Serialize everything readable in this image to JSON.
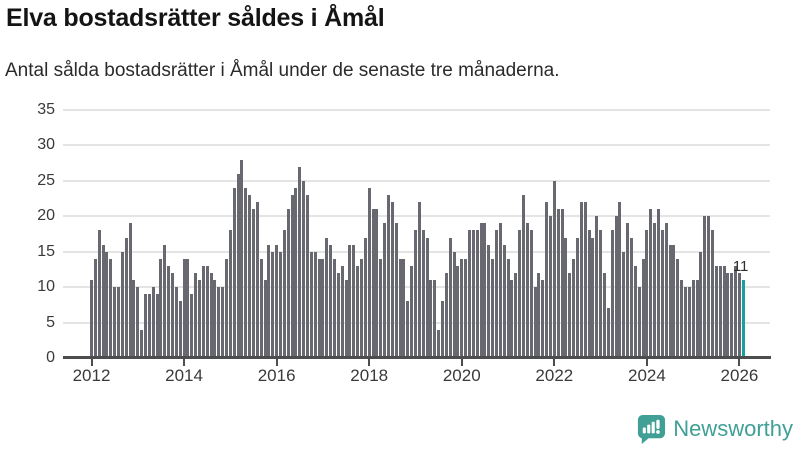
{
  "header": {
    "title": "Elva bostadsrätter såldes i Åmål",
    "subtitle": "Antal sålda bostadsrätter i Åmål under de senaste tre månaderna."
  },
  "chart_data": {
    "type": "bar",
    "title": "Elva bostadsrätter såldes i Åmål",
    "subtitle": "Antal sålda bostadsrätter i Åmål under de senaste tre månaderna.",
    "frequency": "monthly",
    "x_start": "2012-01",
    "x_end": "2026-02",
    "xlabel": "",
    "ylabel": "",
    "ylim": [
      0,
      35
    ],
    "y_ticks": [
      0,
      5,
      10,
      15,
      20,
      25,
      30,
      35
    ],
    "x_tick_labels": [
      "2012",
      "2014",
      "2016",
      "2018",
      "2020",
      "2022",
      "2024",
      "2026"
    ],
    "grid": "horizontal",
    "legend": "none",
    "bar_color": "#686870",
    "highlight_color": "#16a0a2",
    "highlight_index_from_end": 1,
    "highlight_label": "11",
    "values": [
      11,
      14,
      18,
      16,
      15,
      14,
      10,
      10,
      15,
      17,
      19,
      11,
      10,
      4,
      9,
      9,
      10,
      9,
      14,
      16,
      13,
      12,
      10,
      8,
      14,
      14,
      9,
      12,
      11,
      13,
      13,
      12,
      11,
      10,
      10,
      14,
      18,
      24,
      26,
      28,
      24,
      23,
      21,
      22,
      14,
      11,
      16,
      15,
      16,
      15,
      18,
      21,
      23,
      24,
      27,
      25,
      23,
      15,
      15,
      14,
      14,
      17,
      16,
      14,
      12,
      13,
      11,
      16,
      16,
      13,
      14,
      17,
      24,
      21,
      21,
      14,
      19,
      23,
      22,
      19,
      14,
      14,
      8,
      13,
      18,
      22,
      18,
      17,
      11,
      11,
      4,
      8,
      12,
      17,
      15,
      13,
      14,
      14,
      18,
      18,
      18,
      19,
      19,
      16,
      14,
      18,
      19,
      16,
      14,
      11,
      12,
      18,
      23,
      19,
      18,
      10,
      12,
      11,
      22,
      20,
      25,
      21,
      21,
      17,
      12,
      14,
      17,
      22,
      22,
      18,
      17,
      20,
      18,
      12,
      7,
      18,
      20,
      22,
      15,
      19,
      17,
      13,
      10,
      14,
      18,
      21,
      19,
      21,
      18,
      19,
      16,
      16,
      14,
      11,
      10,
      10,
      11,
      11,
      15,
      20,
      20,
      18,
      13,
      13,
      13,
      12,
      12,
      13,
      12,
      11
    ]
  },
  "footer": {
    "brand": "Newsworthy",
    "brand_color": "#40a096",
    "logo_icon": "bar-chart-speech-bubble-icon"
  }
}
